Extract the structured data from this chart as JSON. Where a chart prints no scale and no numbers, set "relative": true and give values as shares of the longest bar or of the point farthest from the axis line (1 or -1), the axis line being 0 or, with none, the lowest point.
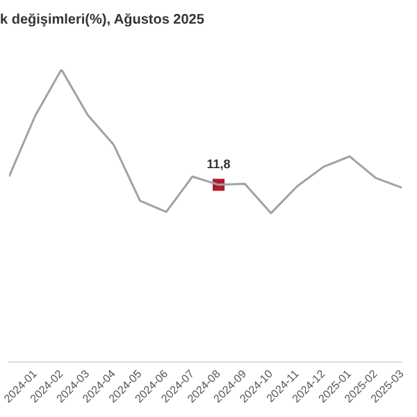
{
  "chart_data": {
    "type": "line",
    "title": "k değişimleri(%), Ağustos 2025",
    "relative": true,
    "categories": [
      null,
      "2024-01",
      "2024-02",
      "2024-03",
      "2024-04",
      "2024-05",
      "2024-06",
      "2024-07",
      "2024-08",
      "2024-09",
      "2024-10",
      "2024-11",
      "2024-12",
      "2025-01",
      "2025-02",
      "2025-03"
    ],
    "series": [
      {
        "color": "#9aa5a5",
        "marker": "none",
        "values": [
          0.634,
          0.842,
          1,
          0.845,
          0.742,
          0.551,
          0.513,
          0.634,
          0.606,
          0.609,
          0.509,
          0.601,
          0.667,
          0.703,
          0.629,
          0.596
        ]
      },
      {
        "type": "scatter",
        "color": "#b01c2e",
        "marker": "square",
        "values": [
          null,
          null,
          null,
          null,
          null,
          null,
          null,
          null,
          0.606,
          null,
          null,
          null,
          null,
          null,
          null,
          null
        ]
      }
    ],
    "annotations": [
      "11,8"
    ],
    "legend": false,
    "grid": false
  }
}
